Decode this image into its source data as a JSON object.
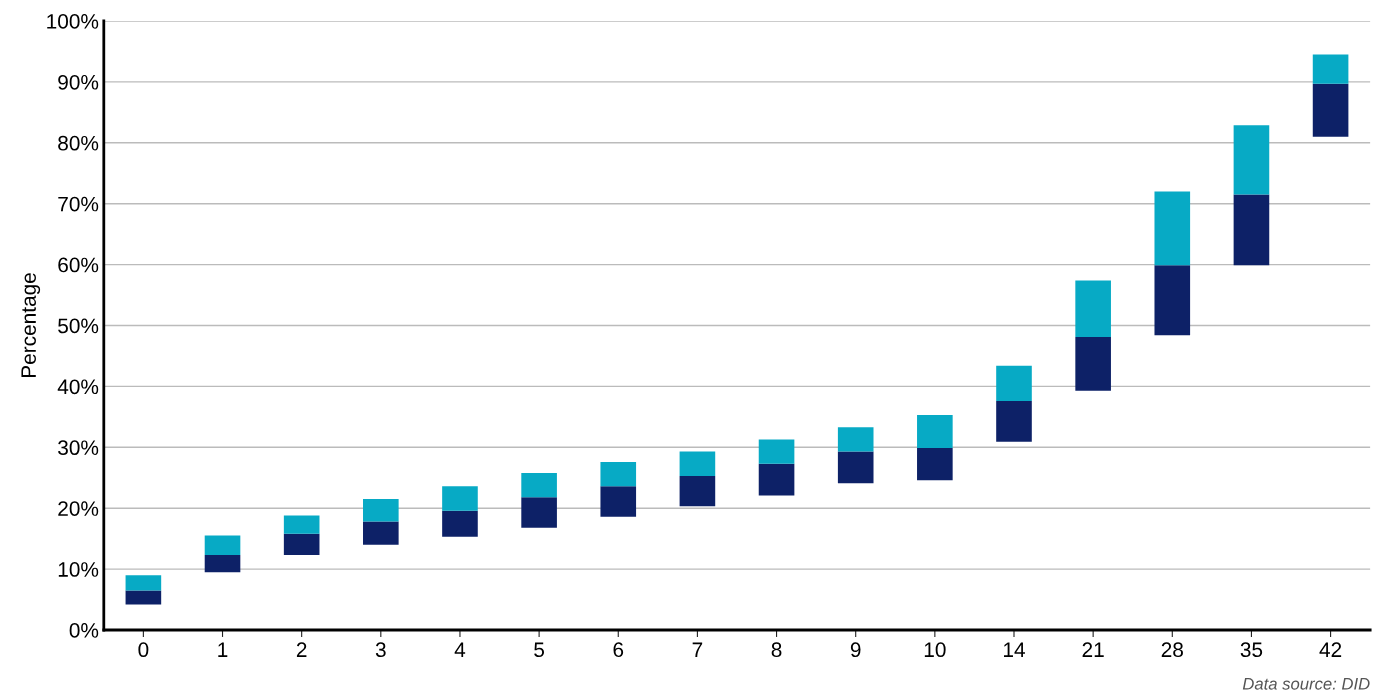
{
  "chart_data": {
    "type": "bar",
    "ylabel": "Percentage",
    "categories": [
      "0",
      "1",
      "2",
      "3",
      "4",
      "5",
      "6",
      "7",
      "8",
      "9",
      "10",
      "14",
      "21",
      "28",
      "35",
      "42"
    ],
    "series": [
      {
        "color": "#0d2167",
        "base": [
          4.2,
          9.5,
          12.3,
          14.0,
          15.3,
          16.8,
          18.6,
          20.3,
          22.1,
          24.1,
          24.6,
          30.9,
          39.3,
          48.4,
          59.9,
          81.0
        ],
        "values": [
          2.3,
          2.8,
          3.5,
          3.8,
          4.3,
          5.0,
          5.0,
          5.0,
          5.2,
          5.2,
          5.3,
          6.7,
          8.8,
          11.5,
          11.6,
          8.7
        ]
      },
      {
        "color": "#07aac5",
        "base": [
          6.5,
          12.3,
          15.8,
          17.8,
          19.6,
          21.8,
          23.6,
          25.3,
          27.3,
          29.3,
          29.9,
          37.6,
          48.1,
          59.9,
          71.5,
          89.7
        ],
        "values": [
          2.5,
          3.2,
          3.0,
          3.7,
          4.0,
          4.0,
          4.0,
          4.0,
          4.0,
          4.0,
          5.4,
          5.8,
          9.3,
          12.1,
          11.4,
          4.8
        ]
      }
    ],
    "ylim": [
      0,
      100
    ],
    "yticks": [
      {
        "value": 0,
        "label": "0%"
      },
      {
        "value": 10,
        "label": "10%"
      },
      {
        "value": 20,
        "label": "20%"
      },
      {
        "value": 30,
        "label": "30%"
      },
      {
        "value": 40,
        "label": "40%"
      },
      {
        "value": 50,
        "label": "50%"
      },
      {
        "value": 60,
        "label": "60%"
      },
      {
        "value": 70,
        "label": "70%"
      },
      {
        "value": 80,
        "label": "80%"
      },
      {
        "value": 90,
        "label": "90%"
      },
      {
        "value": 100,
        "label": "100%"
      }
    ],
    "grid": "y",
    "annotations": [
      "Data source: DID"
    ]
  }
}
